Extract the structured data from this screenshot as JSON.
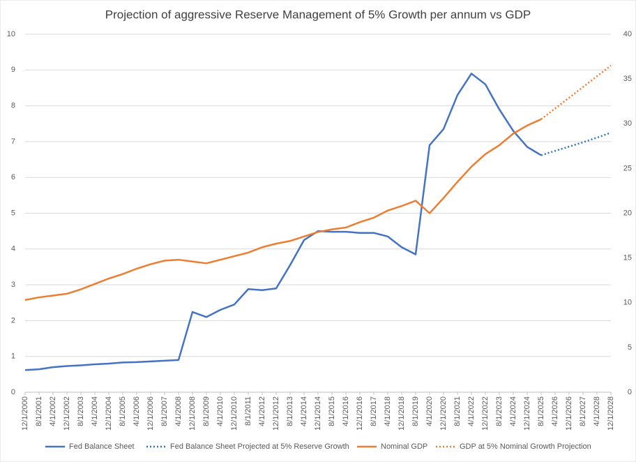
{
  "chart_data": {
    "type": "line",
    "title": "Projection of aggressive Reserve Management of 5% Growth per annum vs GDP",
    "categories": [
      "12/1/2000",
      "8/1/2001",
      "4/1/2002",
      "12/1/2002",
      "8/1/2003",
      "4/1/2004",
      "12/1/2004",
      "8/1/2005",
      "4/1/2006",
      "12/1/2006",
      "8/1/2007",
      "4/1/2008",
      "12/1/2008",
      "8/1/2009",
      "4/1/2010",
      "12/1/2010",
      "8/1/2011",
      "4/1/2012",
      "12/1/2012",
      "8/1/2013",
      "4/1/2014",
      "12/1/2014",
      "8/1/2015",
      "4/1/2016",
      "12/1/2016",
      "8/1/2017",
      "4/1/2018",
      "12/1/2018",
      "8/1/2019",
      "4/1/2020",
      "12/1/2020",
      "8/1/2021",
      "4/1/2022",
      "12/1/2022",
      "8/1/2023",
      "4/1/2024",
      "12/1/2024",
      "8/1/2025",
      "4/1/2026",
      "12/1/2026",
      "8/1/2027",
      "4/1/2028",
      "12/1/2028"
    ],
    "series": [
      {
        "name": "Fed Balance Sheet",
        "color": "#4472c4",
        "dash": false,
        "values": [
          0.62,
          0.64,
          0.7,
          0.73,
          0.75,
          0.78,
          0.8,
          0.83,
          0.84,
          0.86,
          0.88,
          0.9,
          2.24,
          2.1,
          2.3,
          2.45,
          2.88,
          2.85,
          2.9,
          3.55,
          4.25,
          4.5,
          4.48,
          4.48,
          4.45,
          4.45,
          4.35,
          4.05,
          3.85,
          6.9,
          7.35,
          8.3,
          8.9,
          8.6,
          7.9,
          7.3,
          6.85,
          6.62,
          null,
          null,
          null,
          null,
          null
        ]
      },
      {
        "name": "Fed Balance Sheet Projected at 5% Reserve Growth",
        "color": "#2e75b6",
        "dash": true,
        "values": [
          null,
          null,
          null,
          null,
          null,
          null,
          null,
          null,
          null,
          null,
          null,
          null,
          null,
          null,
          null,
          null,
          null,
          null,
          null,
          null,
          null,
          null,
          null,
          null,
          null,
          null,
          null,
          null,
          null,
          null,
          null,
          null,
          null,
          null,
          null,
          null,
          null,
          6.62,
          6.74,
          6.86,
          6.98,
          7.11,
          7.25
        ]
      },
      {
        "name": "Nominal GDP",
        "color": "#ed7d31",
        "dash": false,
        "axis": "y2",
        "values": [
          10.3,
          10.6,
          10.8,
          11.0,
          11.5,
          12.1,
          12.7,
          13.2,
          13.8,
          14.3,
          14.7,
          14.8,
          14.6,
          14.4,
          14.8,
          15.2,
          15.6,
          16.2,
          16.6,
          16.9,
          17.4,
          17.9,
          18.2,
          18.4,
          19.0,
          19.5,
          20.3,
          20.8,
          21.4,
          20.0,
          21.7,
          23.5,
          25.2,
          26.6,
          27.6,
          28.9,
          29.8,
          30.5,
          null,
          null,
          null,
          null,
          null
        ]
      },
      {
        "name": "GDP at 5% Nominal Growth Projection",
        "color": "#ed7d31",
        "dash": true,
        "axis": "y2",
        "values": [
          null,
          null,
          null,
          null,
          null,
          null,
          null,
          null,
          null,
          null,
          null,
          null,
          null,
          null,
          null,
          null,
          null,
          null,
          null,
          null,
          null,
          null,
          null,
          null,
          null,
          null,
          null,
          null,
          null,
          null,
          null,
          null,
          null,
          null,
          null,
          null,
          null,
          30.5,
          31.7,
          32.9,
          34.1,
          35.3,
          36.5
        ]
      }
    ],
    "ylim": [
      0,
      10
    ],
    "yticks": [
      0,
      1,
      2,
      3,
      4,
      5,
      6,
      7,
      8,
      9,
      10
    ],
    "y2lim": [
      0,
      40
    ],
    "y2ticks": [
      0,
      5,
      10,
      15,
      20,
      25,
      30,
      35,
      40
    ],
    "grid": true,
    "legend": "bottom"
  }
}
